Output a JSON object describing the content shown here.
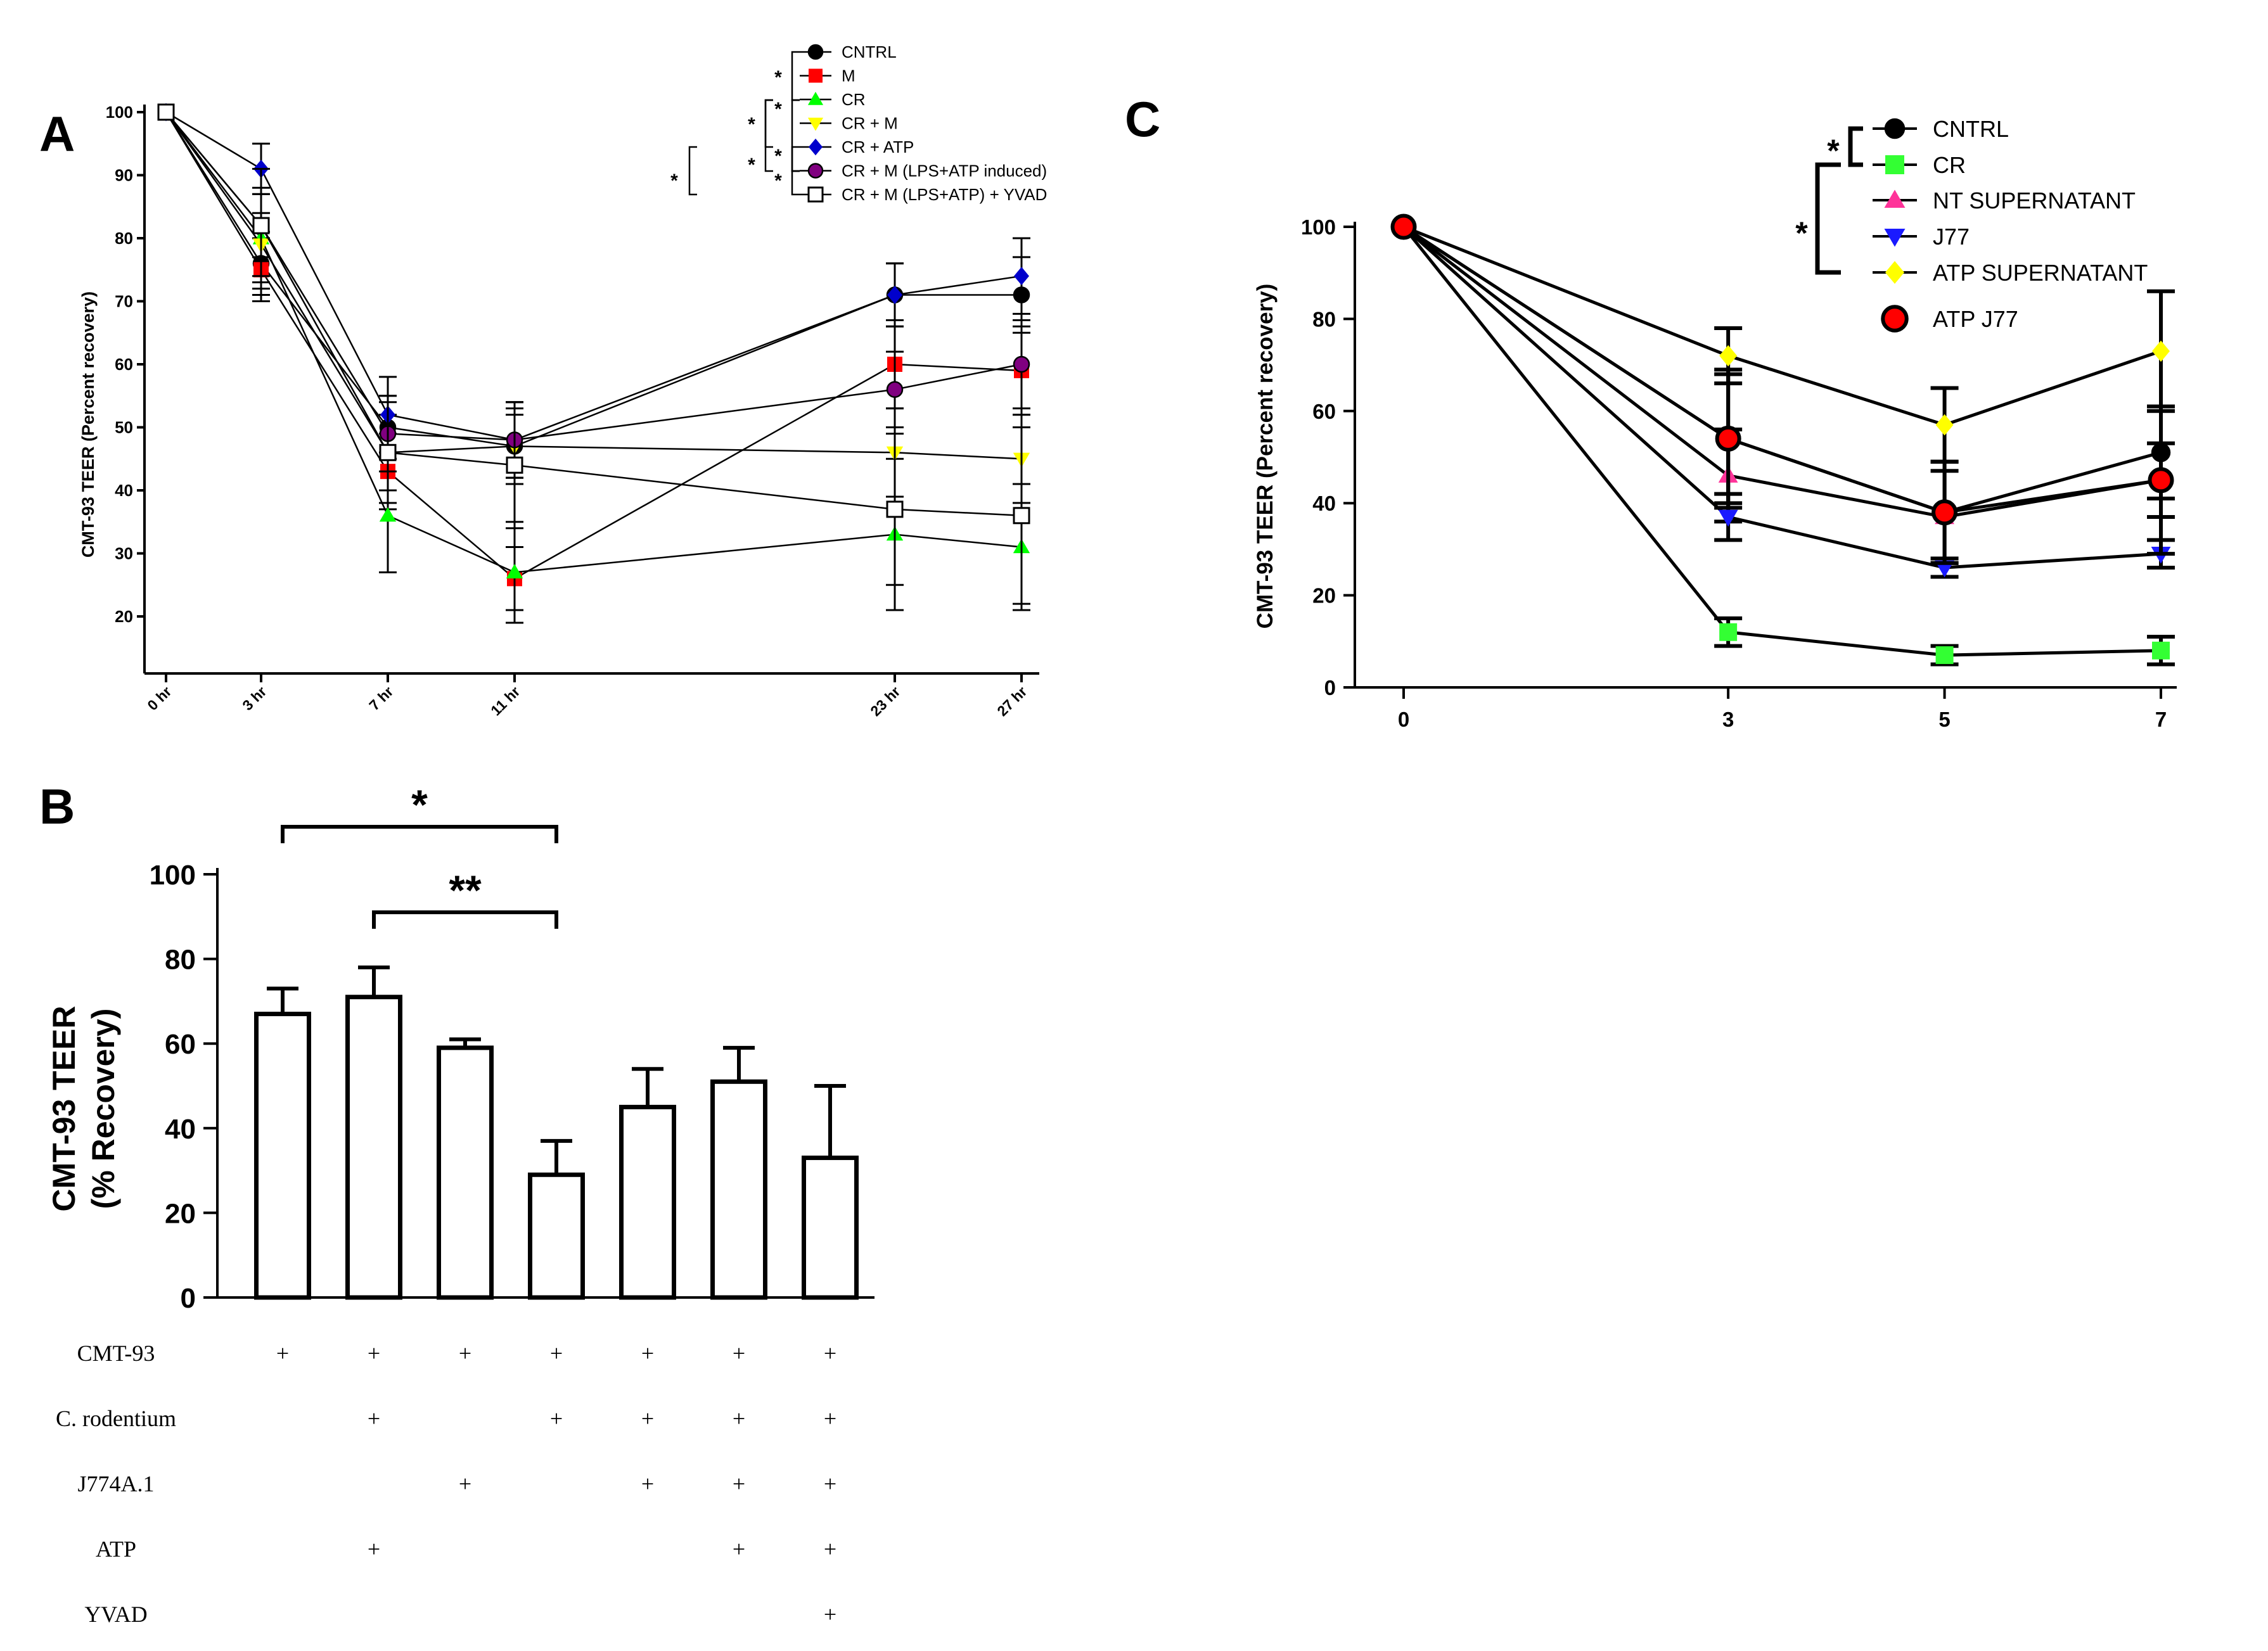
{
  "chart_data": [
    {
      "panel": "A",
      "type": "line",
      "ylabel": "CMT-93 TEER (Percent recovery)",
      "xlabel": "",
      "categories": [
        "0 hr",
        "3 hr",
        "7 hr",
        "11 hr",
        "23 hr",
        "27 hr"
      ],
      "x": [
        0,
        3,
        7,
        11,
        23,
        27
      ],
      "ylim": [
        10,
        100
      ],
      "yticks": [
        20,
        30,
        40,
        50,
        60,
        70,
        80,
        90,
        100
      ],
      "series": [
        {
          "name": "CNTRL",
          "color": "#000000",
          "marker": "circle",
          "values": [
            100,
            76,
            50,
            47,
            71,
            71
          ],
          "errors": [
            0,
            5,
            5,
            5,
            5,
            6
          ]
        },
        {
          "name": "M",
          "color": "#ff0000",
          "marker": "square",
          "values": [
            100,
            75,
            43,
            26,
            60,
            59
          ],
          "errors": [
            0,
            5,
            6,
            5,
            7,
            7
          ]
        },
        {
          "name": "CR",
          "color": "#00ff00",
          "marker": "triangle-up",
          "values": [
            100,
            80,
            36,
            27,
            33,
            31
          ],
          "errors": [
            0,
            8,
            9,
            8,
            12,
            10
          ]
        },
        {
          "name": "CR + M",
          "color": "#ffff00",
          "marker": "triangle-down",
          "values": [
            100,
            79,
            46,
            47,
            46,
            45
          ],
          "errors": [
            0,
            5,
            6,
            6,
            7,
            7
          ]
        },
        {
          "name": "CR + ATP",
          "color": "#0000cc",
          "marker": "diamond",
          "values": [
            100,
            91,
            52,
            48,
            71,
            74
          ],
          "errors": [
            0,
            4,
            6,
            6,
            5,
            6
          ]
        },
        {
          "name": "CR + M (LPS+ATP induced)",
          "color": "#800080",
          "marker": "circle",
          "values": [
            100,
            82,
            49,
            48,
            56,
            60
          ],
          "errors": [
            0,
            5,
            6,
            6,
            6,
            7
          ]
        },
        {
          "name": "CR + M (LPS+ATP) + YVAD",
          "color": "#000000",
          "marker": "open-square",
          "values": [
            100,
            82,
            46,
            44,
            37,
            36
          ],
          "errors": [
            0,
            9,
            8,
            10,
            12,
            14
          ]
        }
      ],
      "significance": [
        "*",
        "*",
        "*",
        "*",
        "*",
        "*",
        "*"
      ]
    },
    {
      "panel": "B",
      "type": "bar",
      "ylabel": "CMT-93 TEER",
      "ylabel2": "(% Recovery)",
      "ylim": [
        0,
        100
      ],
      "yticks": [
        0,
        20,
        40,
        60,
        80,
        100
      ],
      "values": [
        67,
        71,
        59,
        29,
        45,
        51,
        33
      ],
      "errors": [
        6,
        7,
        2,
        8,
        9,
        8,
        17
      ],
      "significance": [
        {
          "from": 0,
          "to": 3,
          "label": "*"
        },
        {
          "from": 1,
          "to": 3,
          "label": "**"
        }
      ],
      "conditions": [
        {
          "label": "CMT-93",
          "marks": [
            "+",
            "+",
            "+",
            "+",
            "+",
            "+",
            "+"
          ]
        },
        {
          "label": "C. rodentium",
          "marks": [
            "",
            "+",
            "",
            "+",
            "+",
            "+",
            "+"
          ]
        },
        {
          "label": "J774A.1",
          "marks": [
            "",
            "",
            "+",
            "",
            "+",
            "+",
            "+"
          ]
        },
        {
          "label": "ATP",
          "marks": [
            "",
            "+",
            "",
            "",
            "",
            "+",
            "+"
          ]
        },
        {
          "label": "YVAD",
          "marks": [
            "",
            "",
            "",
            "",
            "",
            "",
            "+"
          ]
        }
      ]
    },
    {
      "panel": "C",
      "type": "line",
      "ylabel": "CMT-93 TEER (Percent recovery)",
      "xlabel": "",
      "x": [
        0,
        3,
        5,
        7
      ],
      "xticks": [
        "0",
        "3",
        "5",
        "7"
      ],
      "ylim": [
        0,
        100
      ],
      "yticks": [
        0,
        20,
        40,
        60,
        80,
        100
      ],
      "series": [
        {
          "name": "CNTRL",
          "color": "#000000",
          "marker": "circle",
          "values": [
            100,
            54,
            38,
            51
          ],
          "errors": [
            0,
            15,
            11,
            10
          ]
        },
        {
          "name": "CR",
          "color": "#33ff33",
          "marker": "square",
          "values": [
            100,
            12,
            7,
            8
          ],
          "errors": [
            0,
            3,
            2,
            3
          ]
        },
        {
          "name": "NT SUPERNATANT",
          "color": "#ff3399",
          "marker": "triangle-up",
          "values": [
            100,
            46,
            37,
            45
          ],
          "errors": [
            0,
            10,
            10,
            8
          ]
        },
        {
          "name": "J77",
          "color": "#1a1aff",
          "marker": "triangle-down",
          "values": [
            100,
            37,
            26,
            29
          ],
          "errors": [
            0,
            5,
            2,
            3
          ]
        },
        {
          "name": "ATP SUPERNATANT",
          "color": "#ffff00",
          "marker": "diamond",
          "values": [
            100,
            72,
            57,
            73
          ],
          "errors": [
            0,
            6,
            8,
            13
          ]
        },
        {
          "name": "ATP J77",
          "color": "#ff0000",
          "marker": "big-circle",
          "values": [
            100,
            54,
            38,
            45
          ],
          "errors": [
            0,
            14,
            11,
            16
          ]
        }
      ],
      "significance": [
        "*",
        "*"
      ]
    }
  ],
  "panels": {
    "a": "A",
    "b": "B",
    "c": "C"
  }
}
